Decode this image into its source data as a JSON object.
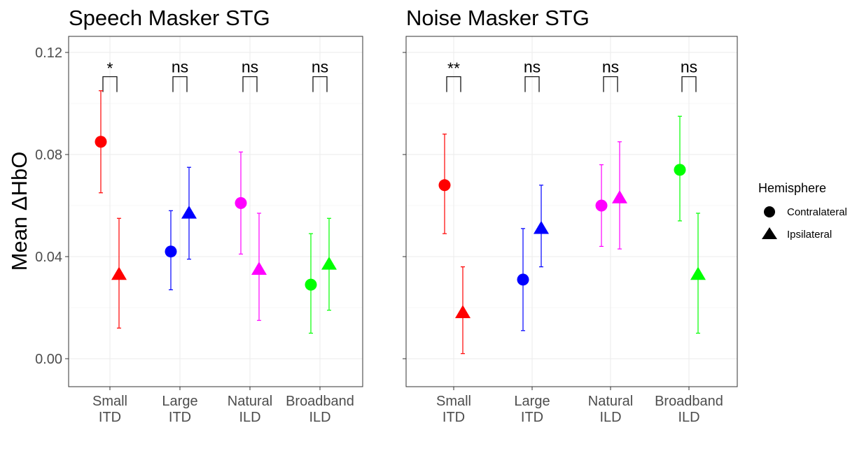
{
  "chart_data": {
    "type": "scatter",
    "ylabel": "Mean ΔHbO",
    "xlabel": "",
    "ylim": [
      -0.011,
      0.126
    ],
    "y_ticks": [
      "0.00",
      "0.04",
      "0.08",
      "0.12"
    ],
    "y_tick_values": [
      0.0,
      0.04,
      0.08,
      0.12
    ],
    "grid": true,
    "categories": [
      "Small\nITD",
      "Large\nITD",
      "Natural\nILD",
      "Broadband\nILD"
    ],
    "category_colors": [
      "#ff0000",
      "#0000ff",
      "#ff00ff",
      "#00ff00"
    ],
    "legend": {
      "title": "Hemisphere",
      "position": "right",
      "items": [
        {
          "label": "Contralateral",
          "shape": "circle"
        },
        {
          "label": "Ipsilateral",
          "shape": "triangle"
        }
      ]
    },
    "panels": [
      {
        "title": "Speech Masker STG",
        "series": [
          {
            "name": "Contralateral",
            "values": [
              0.085,
              0.042,
              0.061,
              0.029
            ],
            "lower": [
              0.065,
              0.027,
              0.041,
              0.01
            ],
            "upper": [
              0.105,
              0.058,
              0.081,
              0.049
            ]
          },
          {
            "name": "Ipsilateral",
            "values": [
              0.033,
              0.057,
              0.035,
              0.037
            ],
            "lower": [
              0.012,
              0.039,
              0.015,
              0.019
            ],
            "upper": [
              0.055,
              0.075,
              0.057,
              0.055
            ]
          }
        ],
        "significance": [
          "*",
          "ns",
          "ns",
          "ns"
        ]
      },
      {
        "title": "Noise Masker STG",
        "series": [
          {
            "name": "Contralateral",
            "values": [
              0.068,
              0.031,
              0.06,
              0.074
            ],
            "lower": [
              0.049,
              0.011,
              0.044,
              0.054
            ],
            "upper": [
              0.088,
              0.051,
              0.076,
              0.095
            ]
          },
          {
            "name": "Ipsilateral",
            "values": [
              0.018,
              0.051,
              0.063,
              0.033
            ],
            "lower": [
              0.002,
              0.036,
              0.043,
              0.01
            ],
            "upper": [
              0.036,
              0.068,
              0.085,
              0.057
            ]
          }
        ],
        "significance": [
          "**",
          "ns",
          "ns",
          "ns"
        ]
      }
    ]
  }
}
